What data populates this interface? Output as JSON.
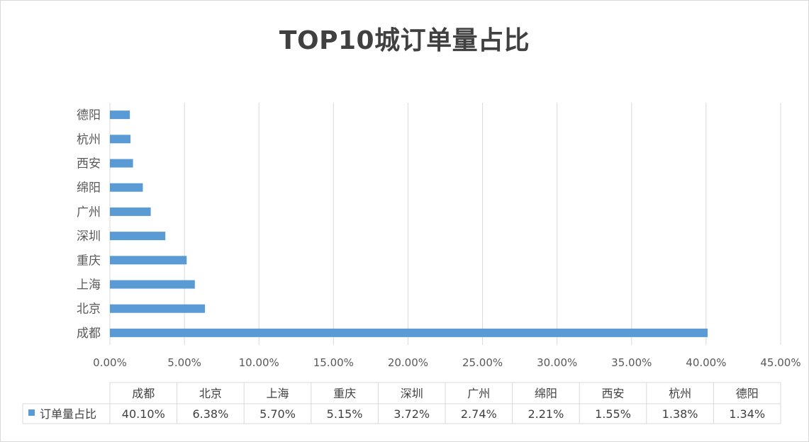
{
  "chart_data": {
    "type": "bar",
    "orientation": "horizontal",
    "title": "TOP10城订单量占比",
    "categories": [
      "成都",
      "北京",
      "上海",
      "重庆",
      "深圳",
      "广州",
      "绵阳",
      "西安",
      "杭州",
      "德阳"
    ],
    "series": [
      {
        "name": "订单量占比",
        "values": [
          40.1,
          6.38,
          5.7,
          5.15,
          3.72,
          2.74,
          2.21,
          1.55,
          1.38,
          1.34
        ],
        "labels": [
          "40.10%",
          "6.38%",
          "5.70%",
          "5.15%",
          "3.72%",
          "2.74%",
          "2.21%",
          "1.55%",
          "1.38%",
          "1.34%"
        ]
      }
    ],
    "xlim": [
      0,
      45
    ],
    "xticks": [
      "0.00%",
      "5.00%",
      "10.00%",
      "15.00%",
      "20.00%",
      "25.00%",
      "30.00%",
      "35.00%",
      "40.00%",
      "45.00%"
    ],
    "grid": true,
    "data_table": true,
    "bar_color": "#5b9bd5"
  }
}
